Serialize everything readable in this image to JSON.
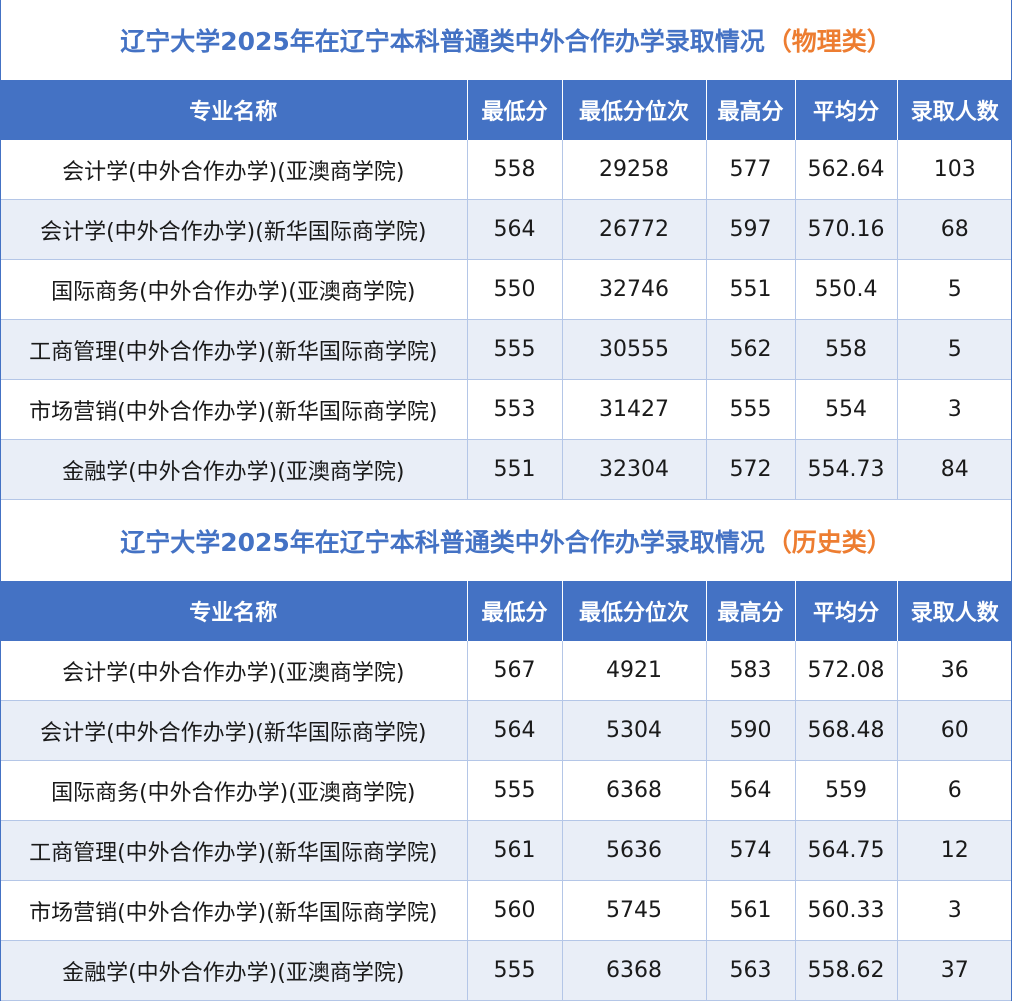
{
  "headers": [
    "专业名称",
    "最低分",
    "最低分位次",
    "最高分",
    "平均分",
    "录取人数"
  ],
  "sections": [
    {
      "title": "辽宁大学2025年在辽宁本科普通类中外合作办学录取情况",
      "category": "（物理类）",
      "rows": [
        [
          "会计学(中外合作办学)(亚澳商学院)",
          "558",
          "29258",
          "577",
          "562.64",
          "103"
        ],
        [
          "会计学(中外合作办学)(新华国际商学院)",
          "564",
          "26772",
          "597",
          "570.16",
          "68"
        ],
        [
          "国际商务(中外合作办学)(亚澳商学院)",
          "550",
          "32746",
          "551",
          "550.4",
          "5"
        ],
        [
          "工商管理(中外合作办学)(新华国际商学院)",
          "555",
          "30555",
          "562",
          "558",
          "5"
        ],
        [
          "市场营销(中外合作办学)(新华国际商学院)",
          "553",
          "31427",
          "555",
          "554",
          "3"
        ],
        [
          "金融学(中外合作办学)(亚澳商学院)",
          "551",
          "32304",
          "572",
          "554.73",
          "84"
        ]
      ]
    },
    {
      "title": "辽宁大学2025年在辽宁本科普通类中外合作办学录取情况",
      "category": "（历史类）",
      "rows": [
        [
          "会计学(中外合作办学)(亚澳商学院)",
          "567",
          "4921",
          "583",
          "572.08",
          "36"
        ],
        [
          "会计学(中外合作办学)(新华国际商学院)",
          "564",
          "5304",
          "590",
          "568.48",
          "60"
        ],
        [
          "国际商务(中外合作办学)(亚澳商学院)",
          "555",
          "6368",
          "564",
          "559",
          "6"
        ],
        [
          "工商管理(中外合作办学)(新华国际商学院)",
          "561",
          "5636",
          "574",
          "564.75",
          "12"
        ],
        [
          "市场营销(中外合作办学)(新华国际商学院)",
          "560",
          "5745",
          "561",
          "560.33",
          "3"
        ],
        [
          "金融学(中外合作办学)(亚澳商学院)",
          "555",
          "6368",
          "563",
          "558.62",
          "37"
        ]
      ]
    }
  ],
  "colors": {
    "header_bg": "#4472c4",
    "title_blue": "#4472c4",
    "title_orange": "#ed7d31",
    "row_alt": "#e9eef7"
  }
}
